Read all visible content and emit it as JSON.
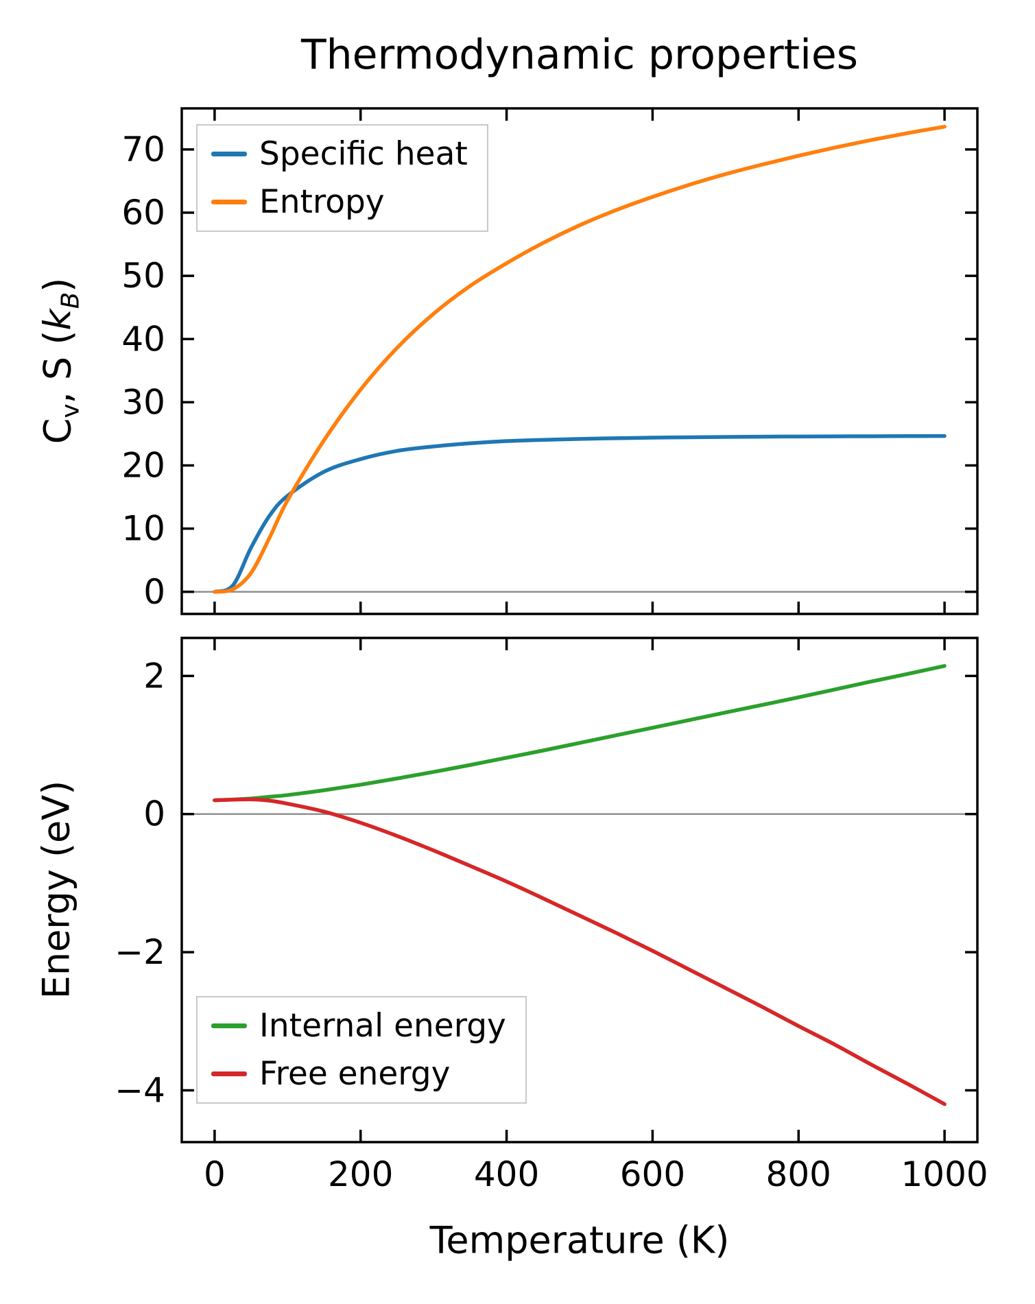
{
  "title": "Thermodynamic properties",
  "colors": {
    "specific_heat": "#1f77b4",
    "entropy": "#ff7f0e",
    "internal_energy": "#2ca02c",
    "free_energy": "#d62728",
    "zero_line": "#8f8f8f",
    "spine": "#000000"
  },
  "chart_data": [
    {
      "type": "line",
      "panel": "top",
      "ylabel": "Cv, S (kB)",
      "ylabel_parts": {
        "base": "C",
        "base_sub": "v",
        "mid": ", S (",
        "sym": "k",
        "sym_sub": "B",
        "end": ")"
      },
      "xlim": [
        -45,
        1045
      ],
      "ylim": [
        -3.5,
        76.5
      ],
      "xticks": [
        0,
        200,
        400,
        600,
        800,
        1000
      ],
      "yticks": [
        0,
        10,
        20,
        30,
        40,
        50,
        60,
        70
      ],
      "zero_line": true,
      "legend_position": "upper-left",
      "x": [
        0,
        25,
        50,
        75,
        100,
        150,
        200,
        250,
        300,
        350,
        400,
        450,
        500,
        550,
        600,
        650,
        700,
        750,
        800,
        850,
        900,
        950,
        1000
      ],
      "series": [
        {
          "name": "Specific heat",
          "color": "#1f77b4",
          "values": [
            0,
            1.0,
            7.0,
            12.0,
            15.2,
            19.0,
            21.0,
            22.3,
            23.0,
            23.5,
            23.85,
            24.05,
            24.2,
            24.3,
            24.4,
            24.45,
            24.5,
            24.55,
            24.58,
            24.6,
            24.62,
            24.64,
            24.65
          ]
        },
        {
          "name": "Entropy",
          "color": "#ff7f0e",
          "values": [
            0,
            0.4,
            3.0,
            8.5,
            14.5,
            24.0,
            32.0,
            38.6,
            44.0,
            48.4,
            52.0,
            55.2,
            58.0,
            60.4,
            62.5,
            64.4,
            66.1,
            67.6,
            69.0,
            70.3,
            71.5,
            72.6,
            73.6
          ]
        }
      ]
    },
    {
      "type": "line",
      "panel": "bottom",
      "ylabel": "Energy (eV)",
      "xlabel": "Temperature (K)",
      "xlim": [
        -45,
        1045
      ],
      "ylim": [
        -4.75,
        2.55
      ],
      "xticks": [
        0,
        200,
        400,
        600,
        800,
        1000
      ],
      "yticks": [
        -4,
        -2,
        0,
        2
      ],
      "zero_line": true,
      "legend_position": "lower-left",
      "x": [
        0,
        25,
        50,
        75,
        100,
        150,
        200,
        250,
        300,
        350,
        400,
        450,
        500,
        550,
        600,
        650,
        700,
        750,
        800,
        850,
        900,
        950,
        1000
      ],
      "series": [
        {
          "name": "Internal energy",
          "color": "#2ca02c",
          "values": [
            0.2,
            0.21,
            0.225,
            0.25,
            0.275,
            0.345,
            0.425,
            0.515,
            0.61,
            0.71,
            0.815,
            0.92,
            1.03,
            1.14,
            1.25,
            1.36,
            1.47,
            1.58,
            1.69,
            1.805,
            1.92,
            2.03,
            2.145
          ]
        },
        {
          "name": "Free energy",
          "color": "#d62728",
          "values": [
            0.2,
            0.209,
            0.212,
            0.195,
            0.15,
            0.035,
            -0.126,
            -0.317,
            -0.527,
            -0.75,
            -0.977,
            -1.22,
            -1.47,
            -1.72,
            -1.98,
            -2.25,
            -2.52,
            -2.79,
            -3.07,
            -3.34,
            -3.63,
            -3.91,
            -4.2
          ]
        }
      ]
    }
  ]
}
